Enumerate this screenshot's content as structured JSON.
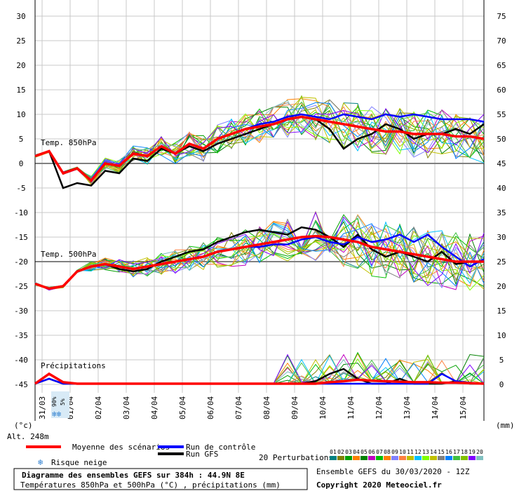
{
  "chart_data": {
    "type": "line",
    "title": "Diagramme des ensembles GEFS sur 384h : 44.9N 8E",
    "subtitle": "Températures 850hPa et 500hPa (°C) , précipitations (mm)",
    "run_info": "Ensemble GEFS du 30/03/2020 - 12Z",
    "copyright": "Copyright 2020 Meteociel.fr",
    "altitude": "Alt. 248m",
    "left_unit": "(°c)",
    "right_unit": "(mm)",
    "left_ticks": [
      "30",
      "25",
      "20",
      "15",
      "10",
      "5",
      "0",
      "-5",
      "-10",
      "-15",
      "-20",
      "-25",
      "-30",
      "-35",
      "-40",
      "-45"
    ],
    "right_ticks": [
      "75",
      "70",
      "65",
      "60",
      "55",
      "50",
      "45",
      "40",
      "35",
      "30",
      "25",
      "20",
      "15",
      "10",
      "5",
      "0"
    ],
    "dates": [
      "31/03",
      "01/04",
      "02/04",
      "03/04",
      "04/04",
      "05/04",
      "06/04",
      "07/04",
      "08/04",
      "09/04",
      "10/04",
      "11/04",
      "12/04",
      "13/04",
      "14/04",
      "15/04"
    ],
    "section_labels": {
      "t850": "Temp. 850hPa",
      "t500": "Temp. 500hPa",
      "precip": "Précipitations"
    },
    "snow_risk": {
      "pct_a": "90%",
      "pct_b": "5%"
    },
    "legend": {
      "mean": "Moyenne des scénarios",
      "control": "Run de contrôle",
      "gfs": "Run GFS",
      "snow": "Risque neige",
      "perturbations": "20 Perturbations",
      "pert_numbers": [
        "01",
        "02",
        "03",
        "04",
        "05",
        "06",
        "07",
        "08",
        "09",
        "10",
        "11",
        "12",
        "13",
        "14",
        "15",
        "16",
        "17",
        "18",
        "19",
        "20"
      ]
    },
    "colors": {
      "mean": "#ff0000",
      "control": "#0000ff",
      "gfs": "#000000",
      "perts": [
        "#008080",
        "#808000",
        "#00a000",
        "#ff8000",
        "#008000",
        "#c000c0",
        "#00c000",
        "#ff8000",
        "#8080ff",
        "#ff8040",
        "#c0c000",
        "#00c0ff",
        "#80ff00",
        "#c0c000",
        "#808080",
        "#0080ff",
        "#40c040",
        "#80c000",
        "#8000ff",
        "#80c0c0"
      ]
    },
    "x": [
      0,
      12,
      24,
      36,
      48,
      60,
      72,
      84,
      96,
      108,
      120,
      132,
      144,
      156,
      168,
      180,
      192,
      204,
      216,
      228,
      240,
      252,
      264,
      276,
      288,
      300,
      312,
      324,
      336,
      348,
      360,
      372,
      384
    ],
    "t850": {
      "mean": [
        1.5,
        2.5,
        -2,
        -1,
        -3.5,
        0,
        -0.5,
        2,
        1.5,
        3.5,
        2,
        4,
        3,
        5,
        6,
        7,
        7.5,
        8,
        9,
        9.5,
        9,
        8.5,
        8,
        7.5,
        7,
        6.5,
        6.5,
        6,
        6,
        6,
        5.5,
        5.5,
        5
      ],
      "control": [
        1.5,
        2.5,
        -2,
        -1,
        -3.5,
        0,
        -0.5,
        2,
        1.5,
        3.5,
        2,
        4,
        3,
        5,
        6,
        7,
        8,
        8.5,
        9.5,
        10,
        9.5,
        9,
        10,
        9.5,
        9,
        10,
        9.5,
        10,
        9.5,
        9,
        9,
        9,
        8.5
      ],
      "gfs": [
        1.5,
        2.5,
        -5,
        -4,
        -4.5,
        -1.5,
        -2,
        1,
        0.5,
        3,
        2,
        3.5,
        2.5,
        4,
        5,
        6,
        7,
        8,
        9,
        9.5,
        9,
        7,
        3,
        5,
        6,
        8,
        7,
        5,
        6,
        6,
        7,
        6,
        8
      ]
    },
    "t500": {
      "mean": [
        -24.5,
        -25.5,
        -25,
        -22,
        -21,
        -20.5,
        -21,
        -21.5,
        -21,
        -20.5,
        -20,
        -19.5,
        -19,
        -18,
        -17.5,
        -17,
        -16.5,
        -16,
        -15.5,
        -15,
        -14.8,
        -15,
        -15.5,
        -16,
        -17,
        -17.5,
        -18,
        -18.5,
        -19,
        -19.5,
        -20,
        -20,
        -20
      ],
      "control": [
        -24.5,
        -25.5,
        -25,
        -22,
        -21,
        -20.5,
        -21,
        -21.5,
        -21,
        -20.5,
        -20,
        -19.5,
        -19,
        -18,
        -17.5,
        -17,
        -17,
        -16.5,
        -16.5,
        -15.5,
        -15,
        -16,
        -16.5,
        -15,
        -16,
        -15.5,
        -14.5,
        -16,
        -14.5,
        -17,
        -19,
        -21,
        -19.5
      ],
      "gfs": [
        -24.5,
        -25.5,
        -25,
        -22,
        -21,
        -20.5,
        -21.5,
        -22,
        -21.5,
        -20,
        -19,
        -18,
        -17.5,
        -16,
        -15,
        -14,
        -13.5,
        -14,
        -14.5,
        -13,
        -13.5,
        -15,
        -17,
        -14.5,
        -17.5,
        -19,
        -18,
        -19,
        -20,
        -18,
        -20.5,
        -20,
        -20
      ]
    },
    "precip": {
      "mean": [
        0,
        2,
        0.3,
        0,
        0,
        0,
        0,
        0,
        0,
        0,
        0,
        0,
        0,
        0,
        0,
        0,
        0,
        0,
        0,
        0,
        0,
        0.3,
        0.5,
        0.8,
        0.6,
        0.5,
        0.4,
        0.3,
        0.3,
        0.2,
        0.2,
        0.1,
        0
      ],
      "control": [
        0,
        1,
        0,
        0,
        0,
        0,
        0,
        0,
        0,
        0,
        0,
        0,
        0,
        0,
        0,
        0,
        0,
        0,
        0,
        0,
        0,
        0,
        0,
        0,
        0,
        0,
        0,
        0,
        0,
        2,
        0.5,
        0.2,
        0
      ],
      "gfs": [
        0,
        1,
        0,
        0,
        0,
        0,
        0,
        0,
        0,
        0,
        0,
        0,
        0,
        0,
        0,
        0,
        0,
        0,
        0,
        0,
        0.5,
        2,
        3,
        1,
        0,
        0,
        1,
        0,
        0,
        0,
        0.5,
        0,
        0
      ]
    }
  }
}
